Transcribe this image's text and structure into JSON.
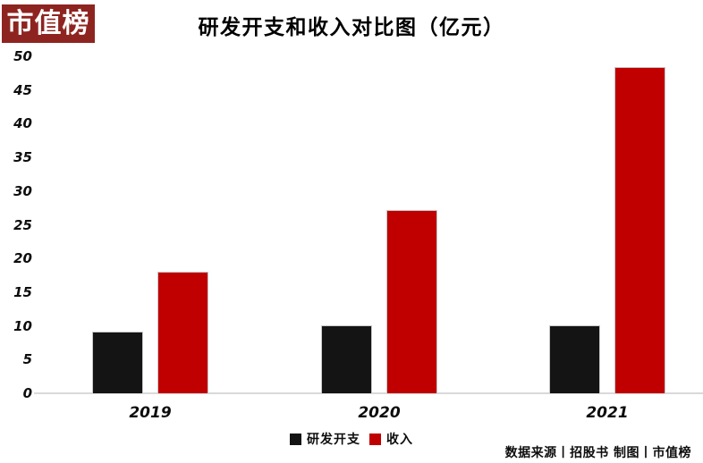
{
  "logo": {
    "text": "市值榜",
    "bg_color": "#8E2420",
    "text_color": "#FFFFFF"
  },
  "header": {
    "title": "研发开支和收入对比图（亿元）"
  },
  "chart_data": {
    "type": "bar",
    "title": "研发开支和收入对比图（亿元）",
    "unit": "亿元",
    "categories": [
      "2019",
      "2020",
      "2021"
    ],
    "series": [
      {
        "name": "研发开支",
        "color": "#141414",
        "values": [
          9.2,
          10.1,
          10.1
        ]
      },
      {
        "name": "收入",
        "color": "#C00000",
        "values": [
          18.0,
          27.2,
          48.4
        ]
      }
    ],
    "ylim": [
      0,
      50
    ],
    "yticks": [
      0,
      5,
      10,
      15,
      20,
      25,
      30,
      35,
      40,
      45,
      50
    ],
    "grid": false,
    "legend_position": "bottom-center"
  },
  "footer": {
    "source_text": "数据来源丨招股书 制图丨市值榜"
  },
  "colors": {
    "brand_red": "#8E2420",
    "bar_red": "#C00000",
    "bar_black": "#141414",
    "axis_gray": "#D9D9D9"
  }
}
